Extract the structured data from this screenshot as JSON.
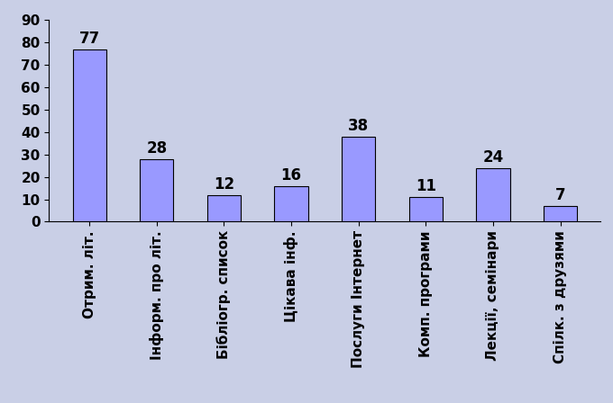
{
  "chart_data": {
    "type": "bar",
    "categories": [
      "Отрим. літ.",
      "Інформ. про літ.",
      "Бібліогр. список",
      "Цікава інф.",
      "Послуги Інтернет",
      "Комп. програми",
      "Лекції, семінари",
      "Спілк. з друзями"
    ],
    "values": [
      77,
      28,
      12,
      16,
      38,
      11,
      24,
      7
    ],
    "color": "#9999ff",
    "ylim": [
      0,
      90
    ],
    "yticks": [
      0,
      10,
      20,
      30,
      40,
      50,
      60,
      70,
      80,
      90
    ],
    "grid": false,
    "data_labels": true
  }
}
